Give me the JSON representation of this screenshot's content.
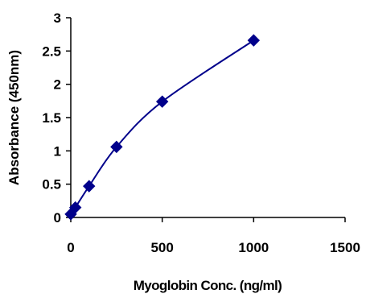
{
  "chart_data": {
    "type": "line",
    "xlabel": "Myoglobin Conc. (ng/ml)",
    "ylabel": "Absorbance (450nm)",
    "xlim": [
      0,
      1500
    ],
    "ylim": [
      0,
      3
    ],
    "x_ticks": [
      0,
      500,
      1000,
      1500
    ],
    "y_ticks": [
      0,
      0.5,
      1,
      1.5,
      2,
      2.5,
      3
    ],
    "x_tick_labels": [
      "0",
      "500",
      "1000",
      "1500"
    ],
    "y_tick_labels": [
      "0",
      "0.5",
      "1",
      "1.5",
      "2",
      "2.5",
      "3"
    ],
    "grid": false,
    "marker": "diamond",
    "series_color": "#00008B",
    "series": [
      {
        "x": [
          0,
          25,
          100,
          250,
          500,
          1000
        ],
        "y": [
          0.05,
          0.15,
          0.47,
          1.06,
          1.74,
          2.66
        ]
      }
    ]
  }
}
